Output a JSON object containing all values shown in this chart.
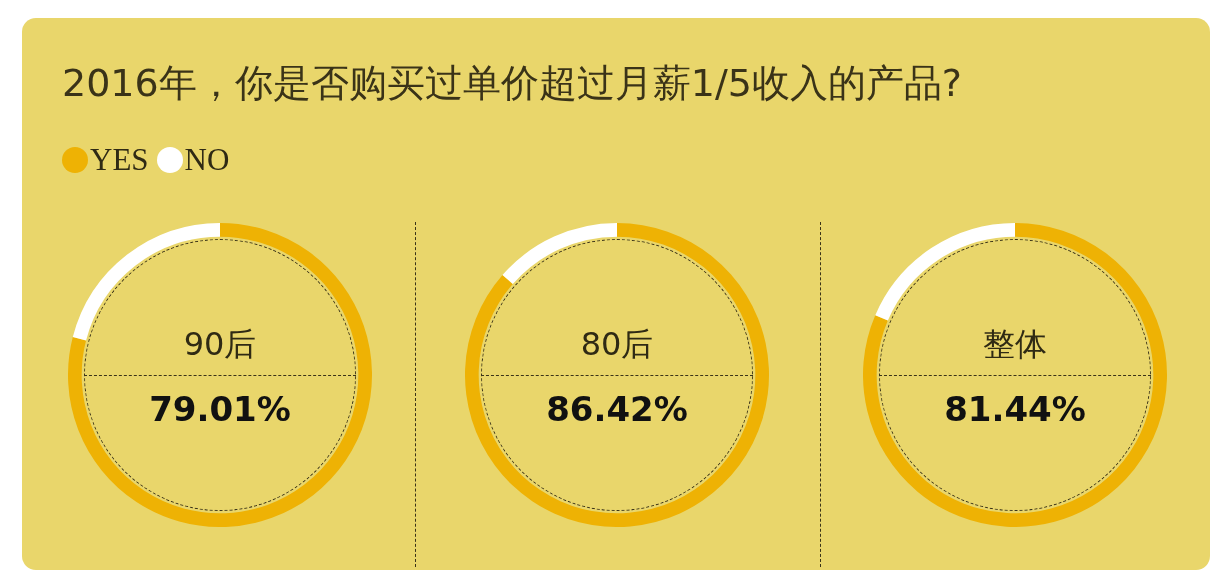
{
  "chart_data": [
    {
      "type": "other",
      "title": "2016年，你是否购买过单价超过月薪1/5收入的产品?"
    },
    {
      "type": "donut",
      "title": "90后",
      "categories": [
        "YES",
        "NO"
      ],
      "values": [
        79.01,
        20.99
      ],
      "colors": [
        "#eeb204",
        "#ffffff"
      ],
      "value_labels": [
        "79.01%",
        null
      ],
      "legend": "top left"
    },
    {
      "type": "donut",
      "title": "80后",
      "categories": [
        null,
        null
      ],
      "values": [
        86.42,
        13.58
      ],
      "colors": [
        "#eeb204",
        "#ffffff"
      ],
      "value_labels": [
        "86.42%",
        null
      ]
    },
    {
      "type": "donut",
      "title": "整体",
      "categories": [
        null,
        null
      ],
      "values": [
        81.44,
        18.56
      ],
      "colors": [
        "#eeb204",
        "#ffffff"
      ],
      "value_labels": [
        "81.44%",
        null
      ]
    }
  ]
}
